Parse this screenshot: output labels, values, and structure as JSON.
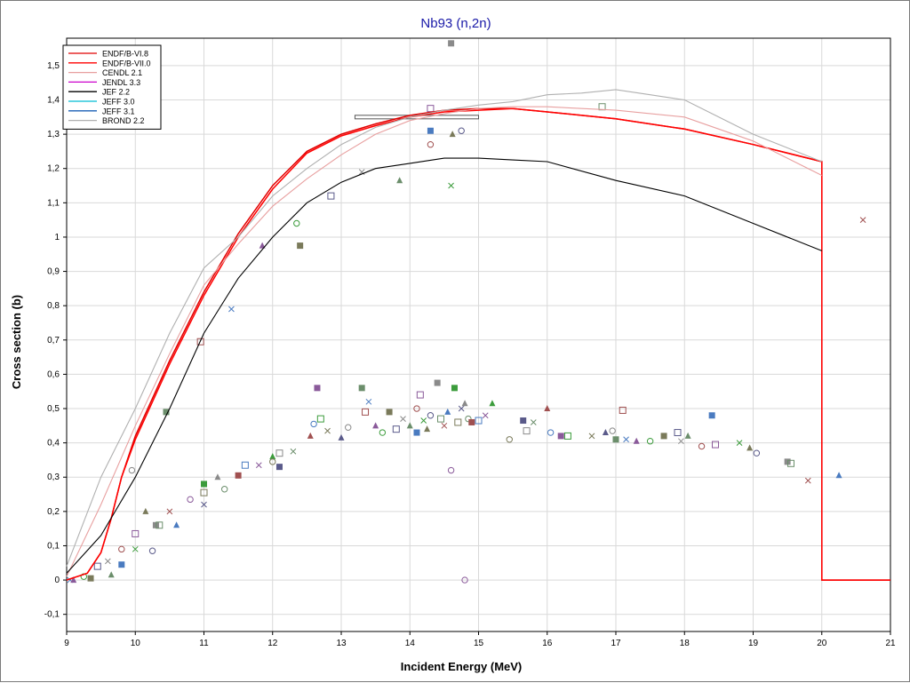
{
  "colors": {
    "title": "#1a1aa8",
    "axis_text": "#000000",
    "grid": "#d9d9d9",
    "endf_b_vi_8": "#e00000",
    "endf_b_vii_0": "#ff0000",
    "cendl_2_1": "#e8a0a0",
    "jendl_3_3": "#cc00cc",
    "jef_2_2": "#000000",
    "jeff_3_0": "#00bcd4",
    "jeff_3_1": "#1a5fb4",
    "brond_2_2": "#b0b0b0"
  },
  "chart_data": {
    "type": "line",
    "title": "Nb93 (n,2n)",
    "xlabel": "Incident Energy (MeV)",
    "ylabel": "Cross section (b)",
    "xlim": [
      9,
      21
    ],
    "ylim": [
      -0.15,
      1.58
    ],
    "x_ticks": [
      9,
      10,
      11,
      12,
      13,
      14,
      15,
      16,
      17,
      18,
      19,
      20,
      21
    ],
    "y_ticks": [
      -0.1,
      0,
      0.1,
      0.2,
      0.3,
      0.4,
      0.5,
      0.6,
      0.7,
      0.8,
      0.9,
      1,
      1.1,
      1.2,
      1.3,
      1.4,
      1.5
    ],
    "y_tick_labels": [
      "-0,1",
      "0",
      "0,1",
      "0,2",
      "0,3",
      "0,4",
      "0,5",
      "0,6",
      "0,7",
      "0,8",
      "0,9",
      "1",
      "1,1",
      "1,2",
      "1,3",
      "1,4",
      "1,5"
    ],
    "grid": true,
    "legend_position": "top-left",
    "legend": [
      "ENDF/B-VI.8",
      "ENDF/B-VII.0",
      "CENDL 2.1",
      "JENDL 3.3",
      "JEF 2.2",
      "JEFF 3.0",
      "JEFF 3.1",
      "BROND 2.2"
    ],
    "series": [
      {
        "name": "ENDF/B-VI.8",
        "color": "#e00000",
        "x": [
          9,
          9.3,
          9.5,
          9.65,
          9.8,
          10,
          10.5,
          11,
          11.5,
          12,
          12.5,
          13,
          13.5,
          14,
          14.5,
          15,
          15.5,
          16,
          17,
          18,
          19,
          20,
          20,
          21
        ],
        "y": [
          0,
          0.02,
          0.08,
          0.18,
          0.3,
          0.42,
          0.64,
          0.84,
          1.01,
          1.15,
          1.25,
          1.3,
          1.33,
          1.355,
          1.37,
          1.375,
          1.375,
          1.365,
          1.345,
          1.315,
          1.27,
          1.22,
          0,
          0
        ]
      },
      {
        "name": "ENDF/B-VII.0",
        "color": "#ff0000",
        "x": [
          9,
          9.3,
          9.5,
          9.65,
          9.8,
          10,
          10.5,
          11,
          11.5,
          12,
          12.5,
          13,
          13.5,
          14,
          14.5,
          15,
          15.5,
          16,
          17,
          18,
          19,
          20,
          20,
          21
        ],
        "y": [
          0,
          0.02,
          0.08,
          0.18,
          0.3,
          0.41,
          0.63,
          0.83,
          1.0,
          1.14,
          1.245,
          1.295,
          1.325,
          1.35,
          1.365,
          1.37,
          1.375,
          1.365,
          1.345,
          1.315,
          1.27,
          1.22,
          0,
          0
        ]
      },
      {
        "name": "CENDL 2.1",
        "color": "#e8a0a0",
        "x": [
          9,
          9.5,
          10,
          10.5,
          11,
          11.5,
          12,
          12.5,
          13,
          13.5,
          14,
          14.5,
          15,
          15.5,
          16,
          17,
          18,
          19,
          20
        ],
        "y": [
          0.01,
          0.22,
          0.45,
          0.66,
          0.86,
          0.98,
          1.09,
          1.17,
          1.24,
          1.3,
          1.34,
          1.36,
          1.375,
          1.38,
          1.38,
          1.37,
          1.35,
          1.28,
          1.18
        ]
      },
      {
        "name": "JENDL 3.3",
        "color": "#cc00cc",
        "x": [],
        "y": []
      },
      {
        "name": "JEF 2.2",
        "color": "#000000",
        "x": [
          9,
          9.5,
          10,
          10.5,
          11,
          11.5,
          12,
          12.5,
          13,
          13.5,
          14,
          14.5,
          15,
          15.5,
          16,
          17,
          18,
          19,
          20
        ],
        "y": [
          0.02,
          0.13,
          0.3,
          0.5,
          0.72,
          0.88,
          1.0,
          1.1,
          1.16,
          1.2,
          1.215,
          1.23,
          1.23,
          1.225,
          1.22,
          1.165,
          1.12,
          1.04,
          0.96
        ]
      },
      {
        "name": "JEFF 3.0",
        "color": "#00bcd4",
        "x": [],
        "y": []
      },
      {
        "name": "JEFF 3.1",
        "color": "#1a5fb4",
        "x": [],
        "y": []
      },
      {
        "name": "BROND 2.2",
        "color": "#b0b0b0",
        "x": [
          9,
          9.5,
          10,
          10.5,
          11,
          11.5,
          12,
          12.5,
          13,
          13.5,
          14,
          14.5,
          15,
          15.5,
          16,
          16.5,
          17,
          17.5,
          18,
          19,
          20
        ],
        "y": [
          0.04,
          0.3,
          0.5,
          0.72,
          0.91,
          1.0,
          1.12,
          1.2,
          1.27,
          1.32,
          1.35,
          1.37,
          1.385,
          1.395,
          1.415,
          1.42,
          1.43,
          1.415,
          1.4,
          1.3,
          1.22
        ]
      }
    ],
    "experimental_upper": [
      {
        "x": 9.95,
        "y": 0.32
      },
      {
        "x": 10.45,
        "y": 0.49
      },
      {
        "x": 10.95,
        "y": 0.695
      },
      {
        "x": 11.4,
        "y": 0.79
      },
      {
        "x": 11.85,
        "y": 0.975
      },
      {
        "x": 12.35,
        "y": 1.04
      },
      {
        "x": 12.4,
        "y": 0.975
      },
      {
        "x": 12.85,
        "y": 1.12
      },
      {
        "x": 13.3,
        "y": 1.19
      },
      {
        "x": 13.85,
        "y": 1.165
      },
      {
        "x": 14.3,
        "y": 1.27
      },
      {
        "x": 14.3,
        "y": 1.31
      },
      {
        "x": 14.3,
        "y": 1.375
      },
      {
        "x": 14.6,
        "y": 1.15
      },
      {
        "x": 14.62,
        "y": 1.3
      },
      {
        "x": 14.75,
        "y": 1.31
      },
      {
        "x": 14.6,
        "y": 1.565
      },
      {
        "x": 16.8,
        "y": 1.38
      },
      {
        "x": 20.6,
        "y": 1.05
      }
    ],
    "experimental_lower": [
      {
        "x": 9.05,
        "y": 0.0
      },
      {
        "x": 9.1,
        "y": 0.0
      },
      {
        "x": 9.25,
        "y": 0.01
      },
      {
        "x": 9.35,
        "y": 0.005
      },
      {
        "x": 9.45,
        "y": 0.04
      },
      {
        "x": 9.6,
        "y": 0.055
      },
      {
        "x": 9.65,
        "y": 0.015
      },
      {
        "x": 9.8,
        "y": 0.09
      },
      {
        "x": 9.8,
        "y": 0.045
      },
      {
        "x": 10.0,
        "y": 0.135
      },
      {
        "x": 10.0,
        "y": 0.09
      },
      {
        "x": 10.15,
        "y": 0.2
      },
      {
        "x": 10.25,
        "y": 0.085
      },
      {
        "x": 10.3,
        "y": 0.16
      },
      {
        "x": 10.35,
        "y": 0.16
      },
      {
        "x": 10.5,
        "y": 0.2
      },
      {
        "x": 10.6,
        "y": 0.16
      },
      {
        "x": 10.8,
        "y": 0.235
      },
      {
        "x": 11.0,
        "y": 0.28
      },
      {
        "x": 11.0,
        "y": 0.255
      },
      {
        "x": 11.0,
        "y": 0.22
      },
      {
        "x": 11.2,
        "y": 0.3
      },
      {
        "x": 11.3,
        "y": 0.265
      },
      {
        "x": 11.5,
        "y": 0.305
      },
      {
        "x": 11.6,
        "y": 0.335
      },
      {
        "x": 11.8,
        "y": 0.335
      },
      {
        "x": 12.0,
        "y": 0.36
      },
      {
        "x": 12.0,
        "y": 0.345
      },
      {
        "x": 12.1,
        "y": 0.33
      },
      {
        "x": 12.1,
        "y": 0.37
      },
      {
        "x": 12.3,
        "y": 0.375
      },
      {
        "x": 12.55,
        "y": 0.42
      },
      {
        "x": 12.6,
        "y": 0.455
      },
      {
        "x": 12.65,
        "y": 0.56
      },
      {
        "x": 12.7,
        "y": 0.47
      },
      {
        "x": 12.8,
        "y": 0.435
      },
      {
        "x": 13.0,
        "y": 0.415
      },
      {
        "x": 13.1,
        "y": 0.445
      },
      {
        "x": 13.3,
        "y": 0.56
      },
      {
        "x": 13.35,
        "y": 0.49
      },
      {
        "x": 13.4,
        "y": 0.52
      },
      {
        "x": 13.5,
        "y": 0.45
      },
      {
        "x": 13.6,
        "y": 0.43
      },
      {
        "x": 13.7,
        "y": 0.49
      },
      {
        "x": 13.8,
        "y": 0.44
      },
      {
        "x": 13.9,
        "y": 0.47
      },
      {
        "x": 14.0,
        "y": 0.45
      },
      {
        "x": 14.1,
        "y": 0.5
      },
      {
        "x": 14.1,
        "y": 0.43
      },
      {
        "x": 14.15,
        "y": 0.54
      },
      {
        "x": 14.2,
        "y": 0.465
      },
      {
        "x": 14.25,
        "y": 0.44
      },
      {
        "x": 14.3,
        "y": 0.48
      },
      {
        "x": 14.4,
        "y": 0.575
      },
      {
        "x": 14.45,
        "y": 0.47
      },
      {
        "x": 14.5,
        "y": 0.45
      },
      {
        "x": 14.55,
        "y": 0.49
      },
      {
        "x": 14.6,
        "y": 0.32
      },
      {
        "x": 14.65,
        "y": 0.56
      },
      {
        "x": 14.7,
        "y": 0.46
      },
      {
        "x": 14.75,
        "y": 0.5
      },
      {
        "x": 14.8,
        "y": 0.515
      },
      {
        "x": 14.85,
        "y": 0.47
      },
      {
        "x": 14.9,
        "y": 0.46
      },
      {
        "x": 15.0,
        "y": 0.465
      },
      {
        "x": 15.1,
        "y": 0.48
      },
      {
        "x": 15.2,
        "y": 0.515
      },
      {
        "x": 15.45,
        "y": 0.41
      },
      {
        "x": 15.65,
        "y": 0.465
      },
      {
        "x": 15.7,
        "y": 0.435
      },
      {
        "x": 15.8,
        "y": 0.46
      },
      {
        "x": 16.0,
        "y": 0.5
      },
      {
        "x": 16.05,
        "y": 0.43
      },
      {
        "x": 16.2,
        "y": 0.42
      },
      {
        "x": 16.3,
        "y": 0.42
      },
      {
        "x": 16.65,
        "y": 0.42
      },
      {
        "x": 16.85,
        "y": 0.43
      },
      {
        "x": 16.95,
        "y": 0.435
      },
      {
        "x": 17.0,
        "y": 0.41
      },
      {
        "x": 17.1,
        "y": 0.495
      },
      {
        "x": 17.15,
        "y": 0.41
      },
      {
        "x": 17.3,
        "y": 0.405
      },
      {
        "x": 17.5,
        "y": 0.405
      },
      {
        "x": 17.7,
        "y": 0.42
      },
      {
        "x": 17.9,
        "y": 0.43
      },
      {
        "x": 17.95,
        "y": 0.405
      },
      {
        "x": 18.05,
        "y": 0.42
      },
      {
        "x": 18.25,
        "y": 0.39
      },
      {
        "x": 18.4,
        "y": 0.48
      },
      {
        "x": 18.45,
        "y": 0.395
      },
      {
        "x": 18.8,
        "y": 0.4
      },
      {
        "x": 18.95,
        "y": 0.385
      },
      {
        "x": 19.05,
        "y": 0.37
      },
      {
        "x": 19.5,
        "y": 0.345
      },
      {
        "x": 19.55,
        "y": 0.34
      },
      {
        "x": 19.8,
        "y": 0.29
      },
      {
        "x": 20.25,
        "y": 0.305
      },
      {
        "x": 14.8,
        "y": 0.0
      }
    ],
    "annotation_bar": {
      "x_start": 13.2,
      "x_end": 15.0,
      "y": 1.35
    }
  }
}
